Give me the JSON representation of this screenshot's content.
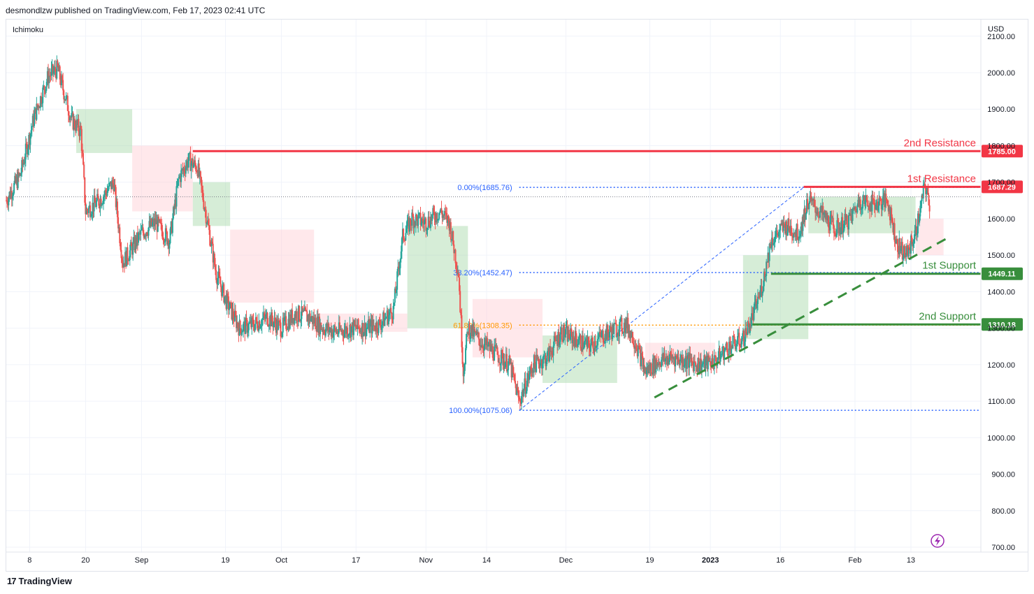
{
  "header": {
    "published_line": "desmondlzw published on TradingView.com, Feb 17, 2023 02:41 UTC"
  },
  "footer": {
    "brand": "TradingView",
    "logo_mark": "17"
  },
  "colors": {
    "resistance": "#f23645",
    "support": "#388e3c",
    "fib_line": "#2962ff",
    "fib_golden": "#ff9800",
    "candle_up": "#26a69a",
    "candle_down": "#ef5350",
    "cloud_bull": "#a5d6a7",
    "cloud_bear": "#ffcdd2",
    "grid": "#f0f3fa",
    "axis_text": "#131722"
  },
  "chart_data": {
    "type": "candlestick",
    "symbol_indicator": "Ichimoku",
    "currency": "USD",
    "title": "",
    "ylim": [
      680,
      2120
    ],
    "y_ticks": [
      700,
      800,
      900,
      1000,
      1100,
      1200,
      1300,
      1400,
      1500,
      1600,
      1700,
      1800,
      1900,
      2000,
      2100
    ],
    "y_tick_labels": [
      "700.00",
      "800.00",
      "900.00",
      "1000.00",
      "1100.00",
      "1200.00",
      "1300.00",
      "1400.00",
      "1500.00",
      "1600.00",
      "1700.00",
      "1800.00",
      "1900.00",
      "2000.00",
      "2100.00"
    ],
    "x_range": [
      "2022-08-03",
      "2023-02-28"
    ],
    "x_ticks": [
      {
        "date": "2022-08-08",
        "label": "8"
      },
      {
        "date": "2022-08-20",
        "label": "20"
      },
      {
        "date": "2022-09-01",
        "label": "Sep"
      },
      {
        "date": "2022-09-19",
        "label": "19"
      },
      {
        "date": "2022-10-01",
        "label": "Oct"
      },
      {
        "date": "2022-10-17",
        "label": "17"
      },
      {
        "date": "2022-11-01",
        "label": "Nov"
      },
      {
        "date": "2022-11-14",
        "label": "14"
      },
      {
        "date": "2022-12-01",
        "label": "Dec"
      },
      {
        "date": "2022-12-19",
        "label": "19"
      },
      {
        "date": "2023-01-01",
        "label": "2023"
      },
      {
        "date": "2023-01-16",
        "label": "16"
      },
      {
        "date": "2023-02-01",
        "label": "Feb"
      },
      {
        "date": "2023-02-13",
        "label": "13"
      }
    ],
    "price_path": [
      [
        "2022-08-03",
        1650
      ],
      [
        "2022-08-06",
        1720
      ],
      [
        "2022-08-09",
        1880
      ],
      [
        "2022-08-12",
        1990
      ],
      [
        "2022-08-14",
        2010
      ],
      [
        "2022-08-17",
        1870
      ],
      [
        "2022-08-19",
        1840
      ],
      [
        "2022-08-20",
        1620
      ],
      [
        "2022-08-23",
        1650
      ],
      [
        "2022-08-26",
        1700
      ],
      [
        "2022-08-28",
        1480
      ],
      [
        "2022-09-01",
        1560
      ],
      [
        "2022-09-04",
        1590
      ],
      [
        "2022-09-07",
        1540
      ],
      [
        "2022-09-09",
        1710
      ],
      [
        "2022-09-11",
        1760
      ],
      [
        "2022-09-13",
        1740
      ],
      [
        "2022-09-15",
        1600
      ],
      [
        "2022-09-17",
        1450
      ],
      [
        "2022-09-19",
        1380
      ],
      [
        "2022-09-22",
        1300
      ],
      [
        "2022-09-25",
        1310
      ],
      [
        "2022-09-28",
        1330
      ],
      [
        "2022-10-01",
        1300
      ],
      [
        "2022-10-04",
        1340
      ],
      [
        "2022-10-07",
        1330
      ],
      [
        "2022-10-10",
        1300
      ],
      [
        "2022-10-13",
        1290
      ],
      [
        "2022-10-16",
        1300
      ],
      [
        "2022-10-19",
        1300
      ],
      [
        "2022-10-22",
        1310
      ],
      [
        "2022-10-25",
        1350
      ],
      [
        "2022-10-27",
        1550
      ],
      [
        "2022-10-29",
        1600
      ],
      [
        "2022-11-01",
        1590
      ],
      [
        "2022-11-04",
        1620
      ],
      [
        "2022-11-06",
        1590
      ],
      [
        "2022-11-08",
        1450
      ],
      [
        "2022-11-09",
        1180
      ],
      [
        "2022-11-10",
        1300
      ],
      [
        "2022-11-13",
        1260
      ],
      [
        "2022-11-16",
        1230
      ],
      [
        "2022-11-19",
        1200
      ],
      [
        "2022-11-21",
        1100
      ],
      [
        "2022-11-24",
        1200
      ],
      [
        "2022-11-27",
        1220
      ],
      [
        "2022-11-30",
        1290
      ],
      [
        "2022-12-03",
        1270
      ],
      [
        "2022-12-06",
        1250
      ],
      [
        "2022-12-09",
        1280
      ],
      [
        "2022-12-12",
        1300
      ],
      [
        "2022-12-14",
        1310
      ],
      [
        "2022-12-16",
        1260
      ],
      [
        "2022-12-18",
        1180
      ],
      [
        "2022-12-21",
        1210
      ],
      [
        "2022-12-24",
        1220
      ],
      [
        "2022-12-27",
        1210
      ],
      [
        "2022-12-30",
        1200
      ],
      [
        "2023-01-02",
        1210
      ],
      [
        "2023-01-05",
        1250
      ],
      [
        "2023-01-08",
        1270
      ],
      [
        "2023-01-10",
        1330
      ],
      [
        "2023-01-12",
        1410
      ],
      [
        "2023-01-14",
        1540
      ],
      [
        "2023-01-17",
        1580
      ],
      [
        "2023-01-20",
        1560
      ],
      [
        "2023-01-22",
        1650
      ],
      [
        "2023-01-25",
        1610
      ],
      [
        "2023-01-28",
        1570
      ],
      [
        "2023-01-31",
        1600
      ],
      [
        "2023-02-02",
        1650
      ],
      [
        "2023-02-05",
        1640
      ],
      [
        "2023-02-08",
        1650
      ],
      [
        "2023-02-10",
        1530
      ],
      [
        "2023-02-12",
        1500
      ],
      [
        "2023-02-14",
        1560
      ],
      [
        "2023-02-16",
        1690
      ],
      [
        "2023-02-17",
        1640
      ]
    ],
    "ichimoku_cloud": [
      {
        "from": "2022-08-18",
        "to": "2022-08-30",
        "top": 1900,
        "bottom": 1780,
        "bias": "bull"
      },
      {
        "from": "2022-08-30",
        "to": "2022-09-12",
        "top": 1800,
        "bottom": 1620,
        "bias": "bear"
      },
      {
        "from": "2022-09-12",
        "to": "2022-09-20",
        "top": 1700,
        "bottom": 1580,
        "bias": "bull"
      },
      {
        "from": "2022-09-20",
        "to": "2022-10-08",
        "top": 1570,
        "bottom": 1370,
        "bias": "bear"
      },
      {
        "from": "2022-10-08",
        "to": "2022-10-28",
        "top": 1340,
        "bottom": 1290,
        "bias": "bear"
      },
      {
        "from": "2022-10-28",
        "to": "2022-11-10",
        "top": 1580,
        "bottom": 1300,
        "bias": "bull"
      },
      {
        "from": "2022-11-11",
        "to": "2022-11-26",
        "top": 1380,
        "bottom": 1220,
        "bias": "bear"
      },
      {
        "from": "2022-11-26",
        "to": "2022-12-12",
        "top": 1280,
        "bottom": 1150,
        "bias": "bull"
      },
      {
        "from": "2022-12-18",
        "to": "2023-01-02",
        "top": 1260,
        "bottom": 1200,
        "bias": "bear"
      },
      {
        "from": "2023-01-08",
        "to": "2023-01-22",
        "top": 1500,
        "bottom": 1270,
        "bias": "bull"
      },
      {
        "from": "2023-01-22",
        "to": "2023-02-14",
        "top": 1660,
        "bottom": 1560,
        "bias": "bull"
      },
      {
        "from": "2023-02-14",
        "to": "2023-02-20",
        "top": 1600,
        "bottom": 1500,
        "bias": "bear"
      }
    ],
    "horizontal_levels": [
      {
        "name": "2nd Resistance",
        "label": "2nd Resistance",
        "price": 1785.0,
        "price_label": "1785.00",
        "kind": "resistance",
        "from": "2022-09-12"
      },
      {
        "name": "1st Resistance",
        "label": "1st Resistance",
        "price": 1687.29,
        "price_label": "1687.29",
        "kind": "resistance",
        "from": "2023-01-21"
      },
      {
        "name": "1st Support",
        "label": "1st Support",
        "price": 1449.11,
        "price_label": "1449.11",
        "kind": "support",
        "from": "2023-01-14"
      },
      {
        "name": "2nd Support",
        "label": "2nd Support",
        "price": 1310.18,
        "price_label": "1310.18",
        "kind": "support",
        "from": "2023-01-10"
      }
    ],
    "fib_retracement": {
      "anchor_low": {
        "date": "2022-11-21",
        "price": 1075.06
      },
      "anchor_high": {
        "date": "2023-01-21",
        "price": 1685.76
      },
      "levels": [
        {
          "ratio": "0.00%",
          "price": 1685.76,
          "label": "0.00%(1685.76)"
        },
        {
          "ratio": "38.20%",
          "price": 1452.47,
          "label": "38.20%(1452.47)"
        },
        {
          "ratio": "61.80%",
          "price": 1308.35,
          "label": "61.80%(1308.35)"
        },
        {
          "ratio": "100.00%",
          "price": 1075.06,
          "label": "100.00%(1075.06)"
        }
      ]
    },
    "trendline": {
      "style": "dashed",
      "from": {
        "date": "2022-12-20",
        "price": 1110
      },
      "to": {
        "date": "2023-02-21",
        "price": 1548
      }
    },
    "last_price_dotted": 1660
  }
}
